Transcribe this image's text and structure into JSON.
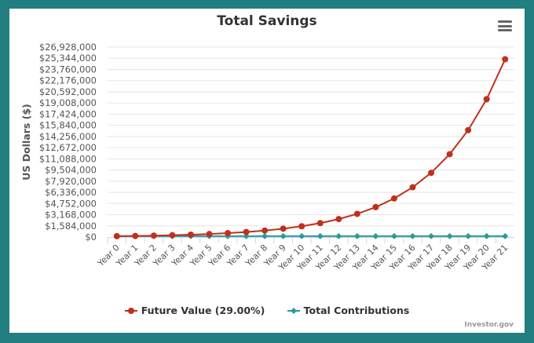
{
  "credit": "Investor.gov",
  "menu_icon": "hamburger-menu-icon",
  "colors": {
    "future": "#c0301a",
    "contrib": "#2a9a9a",
    "frame": "#21807f"
  },
  "chart_data": {
    "type": "line",
    "title": "Total Savings",
    "xlabel": "",
    "ylabel": "US Dollars ($)",
    "ylim": [
      0,
      26928000
    ],
    "yticks": [
      0,
      1584000,
      3168000,
      4752000,
      6336000,
      7920000,
      9504000,
      11088000,
      12672000,
      14256000,
      15840000,
      17424000,
      19008000,
      20592000,
      22176000,
      23760000,
      25344000,
      26928000
    ],
    "ytick_labels": [
      "$0",
      "$1,584,000",
      "$3,168,000",
      "$4,752,000",
      "$6,336,000",
      "$7,920,000",
      "$9,504,000",
      "$11,088,000",
      "$12,672,000",
      "$14,256,000",
      "$15,840,000",
      "$17,424,000",
      "$19,008,000",
      "$20,592,000",
      "$22,176,000",
      "$23,760,000",
      "$25,344,000",
      "$26,928,000"
    ],
    "categories": [
      "Year 0",
      "Year 1",
      "Year 2",
      "Year 3",
      "Year 4",
      "Year 5",
      "Year 6",
      "Year 7",
      "Year 8",
      "Year 9",
      "Year 10",
      "Year 11",
      "Year 12",
      "Year 13",
      "Year 14",
      "Year 15",
      "Year 16",
      "Year 17",
      "Year 18",
      "Year 19",
      "Year 20",
      "Year 21"
    ],
    "series": [
      {
        "name": "Future Value (29.00%)",
        "values": [
          120000,
          154800,
          199692,
          257603,
          332308,
          428677,
          552994,
          713362,
          920237,
          1187105,
          1531365,
          1975460,
          2548344,
          3287363,
          4240699,
          5470502,
          7056948,
          9103463,
          11743467,
          15149073,
          19542304,
          25209572
        ]
      },
      {
        "name": "Total Contributions",
        "values": [
          120000,
          120000,
          120000,
          120000,
          120000,
          120000,
          120000,
          120000,
          120000,
          120000,
          120000,
          120000,
          120000,
          120000,
          120000,
          120000,
          120000,
          120000,
          120000,
          120000,
          120000,
          120000
        ]
      }
    ],
    "grid": true,
    "legend": "bottom"
  }
}
